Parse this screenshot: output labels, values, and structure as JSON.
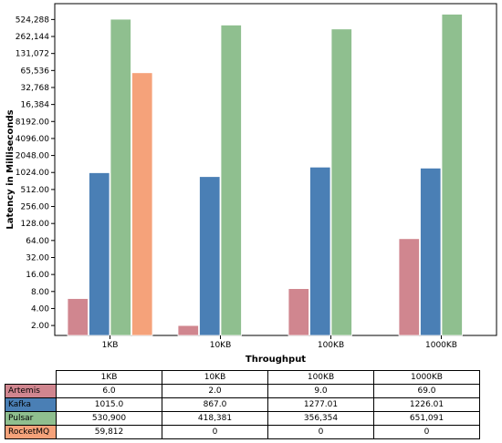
{
  "chart_data": {
    "type": "bar",
    "xlabel": "Throughput",
    "ylabel": "Latency in Milliseconds",
    "categories": [
      "1KB",
      "10KB",
      "100KB",
      "1000KB"
    ],
    "y_scale": "log2",
    "y_ticks": [
      "2.00",
      "4.00",
      "8.00",
      "16.00",
      "32.00",
      "64.00",
      "128.00",
      "256.00",
      "512.00",
      "1024.00",
      "2048.00",
      "4096.00",
      "8192.00",
      "16,384",
      "32,768",
      "65,536",
      "131,072",
      "262,144",
      "524,288"
    ],
    "series": [
      {
        "name": "Artemis",
        "color": "#d0868f",
        "values": [
          6.0,
          2.0,
          9.0,
          69.0
        ],
        "labels": [
          "6.0",
          "2.0",
          "9.0",
          "69.0"
        ]
      },
      {
        "name": "Kafka",
        "color": "#4a7fb5",
        "values": [
          1015.0,
          867.0,
          1277.01,
          1226.01
        ],
        "labels": [
          "1015.0",
          "867.0",
          "1277.01",
          "1226.01"
        ]
      },
      {
        "name": "Pulsar",
        "color": "#8fbf8f",
        "values": [
          530900,
          418381,
          356354,
          651091
        ],
        "labels": [
          "530,900",
          "418,381",
          "356,354",
          "651,091"
        ]
      },
      {
        "name": "RocketMQ",
        "color": "#f5a27a",
        "values": [
          59812,
          0,
          0,
          0
        ],
        "labels": [
          "59,812",
          "0",
          "0",
          "0"
        ]
      }
    ]
  }
}
